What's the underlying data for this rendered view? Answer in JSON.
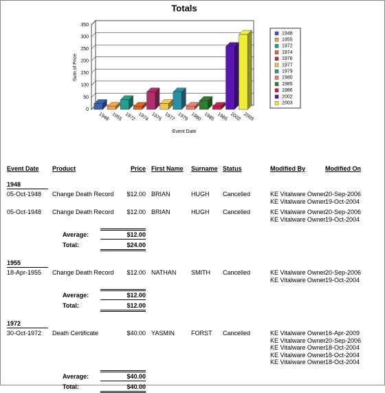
{
  "chart_data": {
    "type": "bar",
    "title": "Totals",
    "x_label": "Event Date",
    "y_label": "Sum of Price",
    "categories": [
      "1948",
      "1955",
      "1972",
      "1974",
      "1976",
      "1977",
      "1979",
      "1980",
      "1985",
      "1986",
      "2002",
      "2003"
    ],
    "values": [
      24,
      12,
      40,
      12,
      72,
      24,
      72,
      12,
      36,
      12,
      260,
      310
    ],
    "colors": [
      "#3a62b0",
      "#f0a548",
      "#20a08e",
      "#e0641e",
      "#b02e6e",
      "#f2c84a",
      "#2a8ea6",
      "#ee8070",
      "#2f7d2f",
      "#c8204e",
      "#5a14b4",
      "#f0ee3a"
    ],
    "ylim": [
      0,
      350
    ],
    "yticks": [
      0,
      50,
      100,
      150,
      200,
      250,
      300,
      350
    ],
    "grid": true,
    "legend": "right"
  },
  "report": {
    "headers": [
      "Event Date",
      "Product",
      "Price",
      "First Name",
      "Surname",
      "Status",
      "Modified By",
      "Modified On"
    ],
    "groups": [
      {
        "year": "1948",
        "rows": [
          {
            "cells": [
              "05-Oct-1948",
              "Change Death Record",
              "$12.00",
              "BRIAN",
              "HUGH",
              "Cancelled"
            ],
            "modified": [
              [
                "KE Vitalware Owner",
                "20-Sep-2006"
              ],
              [
                "KE Vitalware Owner",
                "19-Oct-2004"
              ]
            ]
          },
          {
            "cells": [
              "05-Oct-1948",
              "Change Death Record",
              "$12.00",
              "BRIAN",
              "HUGH",
              "Cancelled"
            ],
            "modified": [
              [
                "KE Vitalware Owner",
                "20-Sep-2006"
              ],
              [
                "KE Vitalware Owner",
                "19-Oct-2004"
              ]
            ]
          }
        ],
        "average_label": "Average:",
        "average": "$12.00",
        "total_label": "Total:",
        "total": "$24.00"
      },
      {
        "year": "1955",
        "rows": [
          {
            "cells": [
              "18-Apr-1955",
              "Change Death Record",
              "$12.00",
              "NATHAN",
              "SMITH",
              "Cancelled"
            ],
            "modified": [
              [
                "KE Vitalware Owner",
                "20-Sep-2006"
              ],
              [
                "KE Vitalware Owner",
                "19-Oct-2004"
              ]
            ]
          }
        ],
        "average_label": "Average:",
        "average": "$12.00",
        "total_label": "Total:",
        "total": "$12.00"
      },
      {
        "year": "1972",
        "rows": [
          {
            "cells": [
              "30-Oct-1972",
              "Death Certificate",
              "$40.00",
              "YASMIN",
              "FORST",
              "Cancelled"
            ],
            "modified": [
              [
                "KE Vitalware Owner",
                "16-Apr-2009"
              ],
              [
                "KE Vitalware Owner",
                "20-Sep-2006"
              ],
              [
                "KE Vitalware Owner",
                "18-Oct-2004"
              ],
              [
                "KE Vitalware Owner",
                "18-Oct-2004"
              ],
              [
                "KE Vitalware Owner",
                "18-Oct-2004"
              ]
            ]
          }
        ],
        "average_label": "Average:",
        "average": "$40.00",
        "total_label": "Total:",
        "total": "$40.00"
      }
    ]
  }
}
